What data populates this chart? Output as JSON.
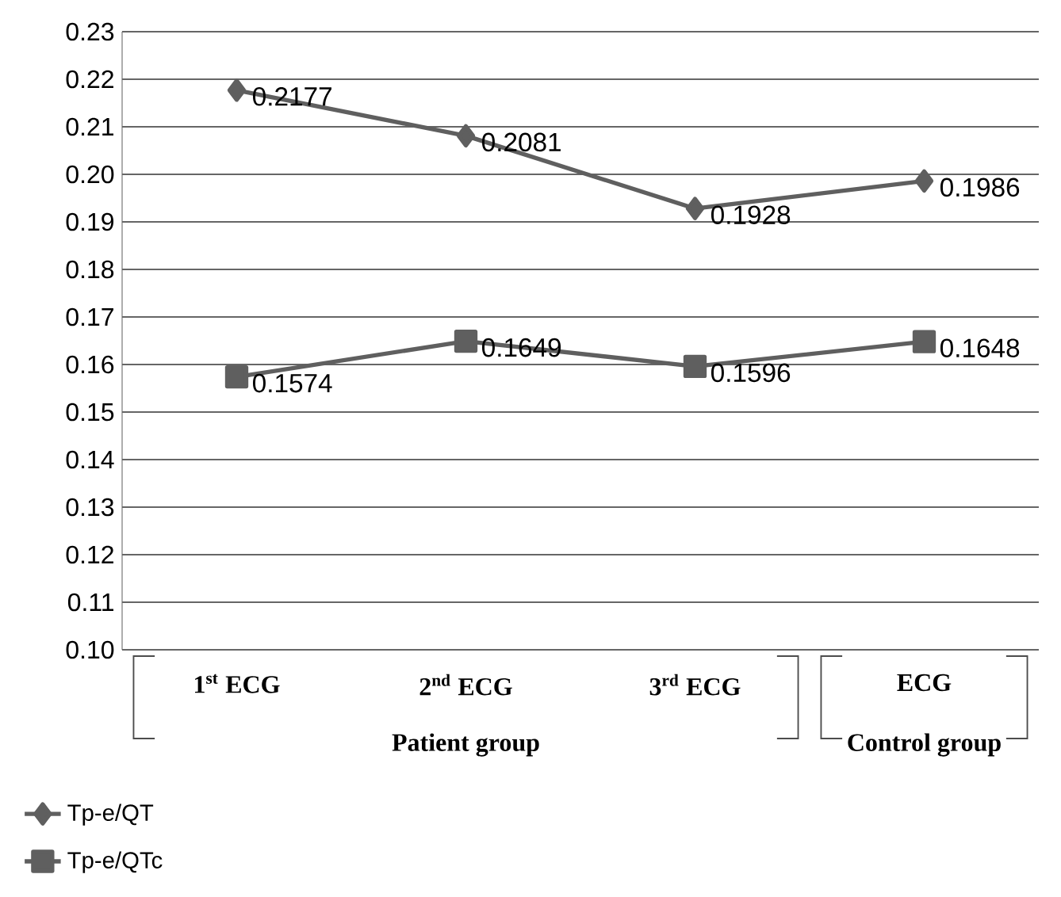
{
  "chart_data": {
    "type": "line",
    "categories": [
      "1$^{st}$ ECG",
      "2$^{nd}$ ECG",
      "3$^{rd}$ ECG",
      "ECG"
    ],
    "series": [
      {
        "name": "Tp-e/QT",
        "color": "#5f5f5f",
        "marker": "diamond",
        "values": [
          0.2177,
          0.2081,
          0.1928,
          0.1986
        ]
      },
      {
        "name": "Tp-e/QTc",
        "color": "#5f5f5f",
        "marker": "square",
        "values": [
          0.1574,
          0.1649,
          0.1596,
          0.1648
        ]
      }
    ],
    "ylim": [
      0.1,
      0.23
    ],
    "yticks": [
      {
        "value": 0.1,
        "label": "0.10"
      },
      0.11,
      0.12,
      0.13,
      0.14,
      0.15,
      0.16,
      0.17,
      0.18,
      0.19,
      {
        "value": 0.2,
        "label": "0.20"
      },
      0.21,
      0.22,
      0.23
    ],
    "annotations": [
      "Patient group",
      "Control group"
    ],
    "grid": "y",
    "legend": "bottom left",
    "data_labels": true,
    "line_style": "solid"
  }
}
